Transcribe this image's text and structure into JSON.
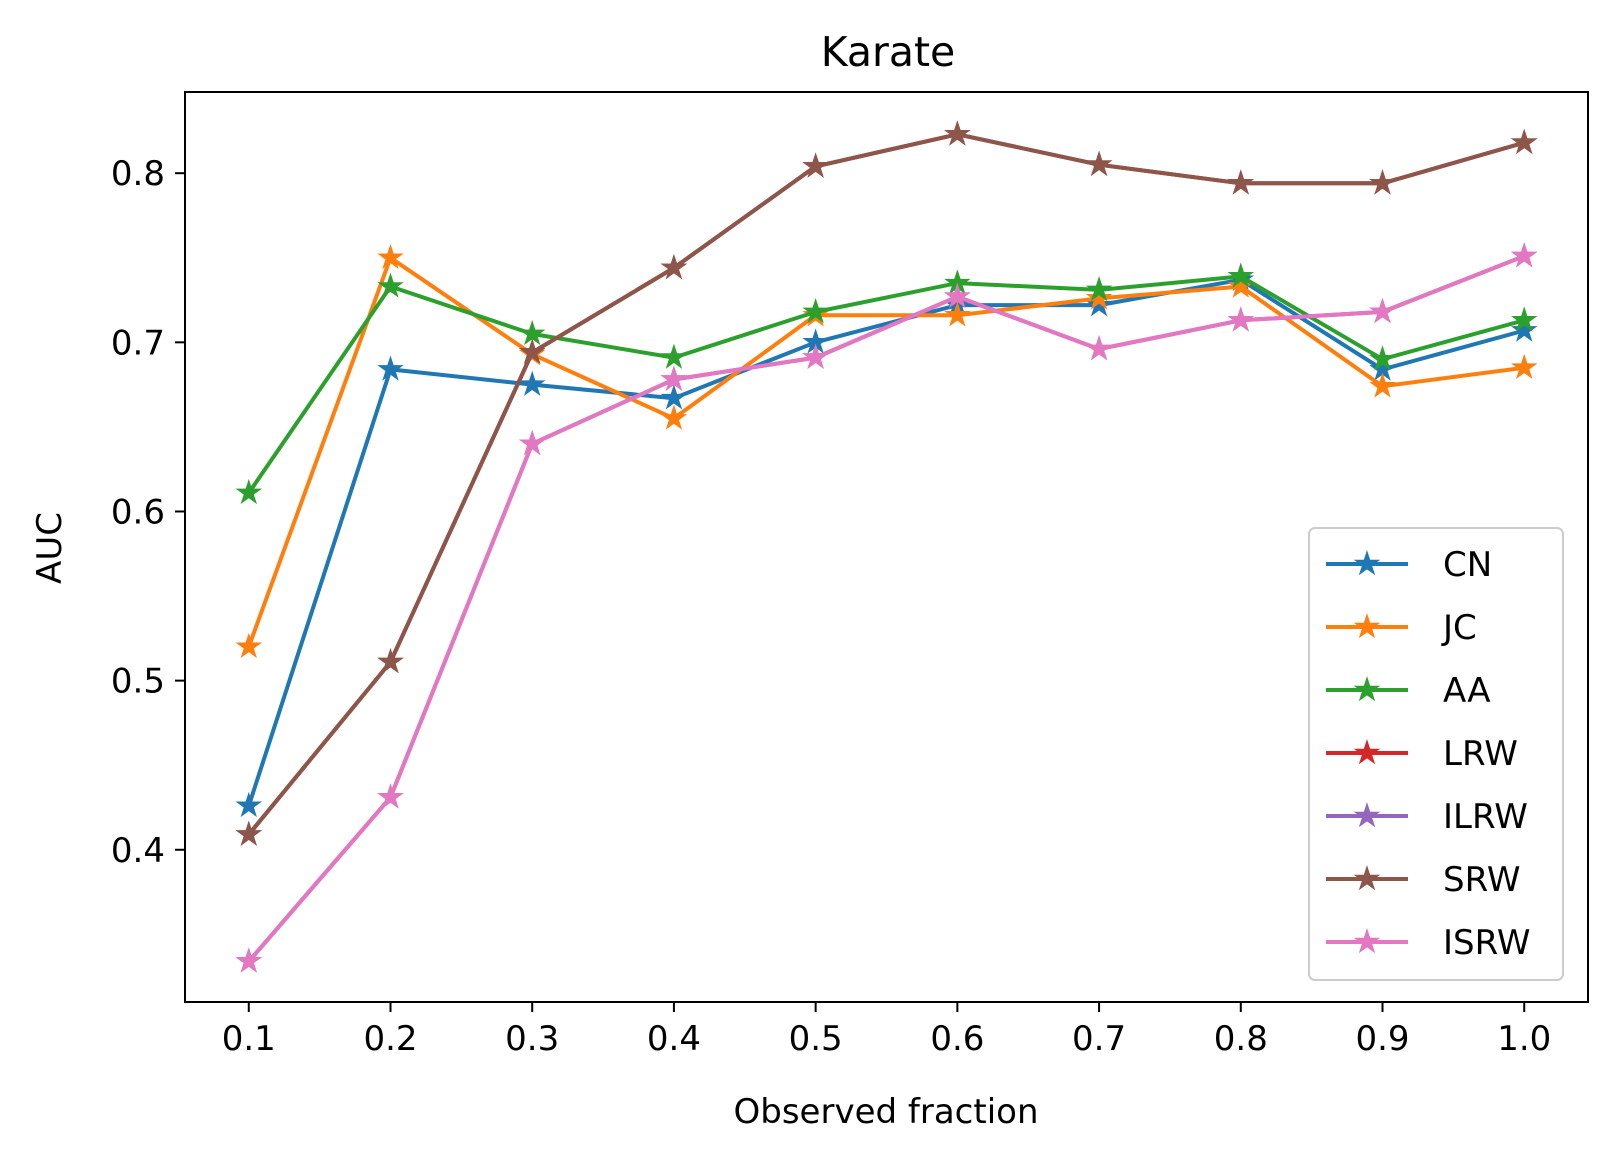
{
  "chart_data": {
    "type": "line",
    "title": "Karate",
    "xlabel": "Observed fraction",
    "ylabel": "AUC",
    "x": [
      0.1,
      0.2,
      0.3,
      0.4,
      0.5,
      0.6,
      0.7,
      0.8,
      0.9,
      1.0
    ],
    "x_tick_labels": [
      "0.1",
      "0.2",
      "0.3",
      "0.4",
      "0.5",
      "0.6",
      "0.7",
      "0.8",
      "0.9",
      "1.0"
    ],
    "y_ticks": [
      0.4,
      0.5,
      0.6,
      0.7,
      0.8
    ],
    "y_tick_labels": [
      "0.4",
      "0.5",
      "0.6",
      "0.7",
      "0.8"
    ],
    "xlim": [
      0.055,
      1.045
    ],
    "ylim": [
      0.31,
      0.848
    ],
    "grid": false,
    "legend_position": "lower-right",
    "marker": "star",
    "series": [
      {
        "name": "CN",
        "color": "#1f77b4",
        "values": [
          0.426,
          0.684,
          0.675,
          0.667,
          0.7,
          0.722,
          0.722,
          0.737,
          0.684,
          0.707
        ]
      },
      {
        "name": "JC",
        "color": "#ff7f0e",
        "values": [
          0.52,
          0.75,
          0.693,
          0.655,
          0.716,
          0.716,
          0.726,
          0.733,
          0.674,
          0.685
        ]
      },
      {
        "name": "AA",
        "color": "#2ca02c",
        "values": [
          0.611,
          0.733,
          0.705,
          0.691,
          0.718,
          0.735,
          0.731,
          0.739,
          0.69,
          0.713
        ]
      },
      {
        "name": "LRW",
        "color": "#d62728",
        "values": [
          0.409,
          0.511,
          0.694,
          0.744,
          0.804,
          0.823,
          0.805,
          0.794,
          0.794,
          0.818
        ]
      },
      {
        "name": "ILRW",
        "color": "#9467bd",
        "values": [
          0.334,
          0.431,
          0.64,
          0.678,
          0.691,
          0.727,
          0.696,
          0.713,
          0.718,
          0.751
        ]
      },
      {
        "name": "SRW",
        "color": "#8c564b",
        "values": [
          0.409,
          0.511,
          0.694,
          0.744,
          0.804,
          0.823,
          0.805,
          0.794,
          0.794,
          0.818
        ]
      },
      {
        "name": "ISRW",
        "color": "#e377c2",
        "values": [
          0.334,
          0.431,
          0.64,
          0.678,
          0.691,
          0.727,
          0.696,
          0.713,
          0.718,
          0.751
        ]
      }
    ]
  }
}
